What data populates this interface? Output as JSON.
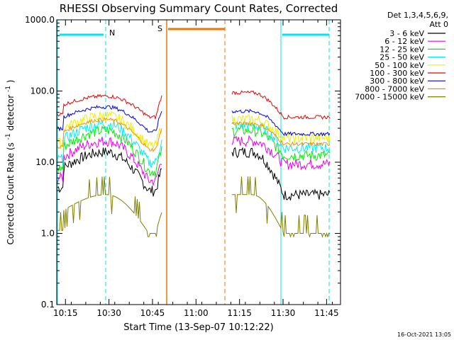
{
  "chart_data": {
    "type": "line",
    "title": "RHESSI Observing Summary Count Rates, Corrected",
    "xlabel": "Start Time (13-Sep-07 10:12:22)",
    "ylabel_main": "Corrected Count Rate (s",
    "ylabel_sup1": "-1",
    "ylabel_mid": " detector",
    "ylabel_sup2": "-1",
    "ylabel_end": ")",
    "yscale": "log",
    "ylim": [
      0.1,
      1000
    ],
    "xlim_minutes": [
      10.2,
      11.83
    ],
    "x_ticks": [
      "10:15",
      "10:30",
      "10:45",
      "11:00",
      "11:15",
      "11:30",
      "11:45"
    ],
    "x_tick_values": [
      10.25,
      10.5,
      10.75,
      11.0,
      11.25,
      11.5,
      11.75
    ],
    "y_ticks": [
      "0.1",
      "1.0",
      "10.0",
      "100.0",
      "1000.0"
    ],
    "y_tick_values": [
      0.1,
      1,
      10,
      100,
      1000
    ],
    "legend_header": "Det 1,3,4,5,6,9,",
    "legend_header2": "Att 0",
    "series": [
      {
        "name": "3 - 6 keV",
        "color": "#000000"
      },
      {
        "name": "6 - 12 keV",
        "color": "#ee00ee"
      },
      {
        "name": "12 - 25 keV",
        "color": "#00ee00"
      },
      {
        "name": "25 - 50 keV",
        "color": "#00eeee"
      },
      {
        "name": "50 - 100 keV",
        "color": "#eeee00"
      },
      {
        "name": "100 - 300 keV",
        "color": "#ee0000"
      },
      {
        "name": "300 - 800 keV",
        "color": "#0000ee"
      },
      {
        "name": "800 - 7000 keV",
        "color": "#ff8c00"
      },
      {
        "name": "7000 - 15000 keV",
        "color": "#808000"
      }
    ],
    "annotations": {
      "night_label": "N",
      "saa_label": "S"
    },
    "colors": {
      "night": "#00e5ee",
      "saa": "#ee7600"
    }
  },
  "footer": {
    "date": "16-Oct-2021 13:05"
  }
}
